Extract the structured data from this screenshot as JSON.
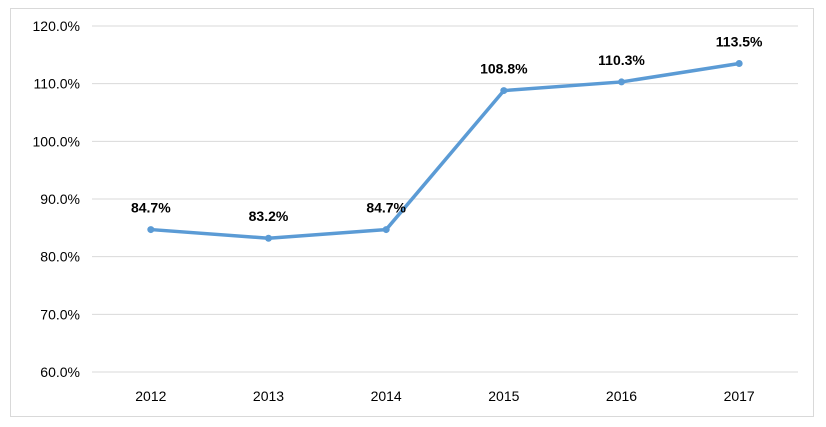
{
  "chart_data": {
    "type": "line",
    "categories": [
      "2012",
      "2013",
      "2014",
      "2015",
      "2016",
      "2017"
    ],
    "series": [
      {
        "values": [
          84.7,
          83.2,
          84.7,
          108.8,
          110.3,
          113.5
        ]
      }
    ],
    "data_labels": [
      "84.7%",
      "83.2%",
      "84.7%",
      "108.8%",
      "110.3%",
      "113.5%"
    ],
    "y_ticks": [
      "60.0%",
      "70.0%",
      "80.0%",
      "90.0%",
      "100.0%",
      "110.0%",
      "120.0%"
    ],
    "ylim": [
      60,
      120
    ],
    "grid": true,
    "line_color": "#5b9bd5",
    "grid_color": "#d9d9d9"
  }
}
